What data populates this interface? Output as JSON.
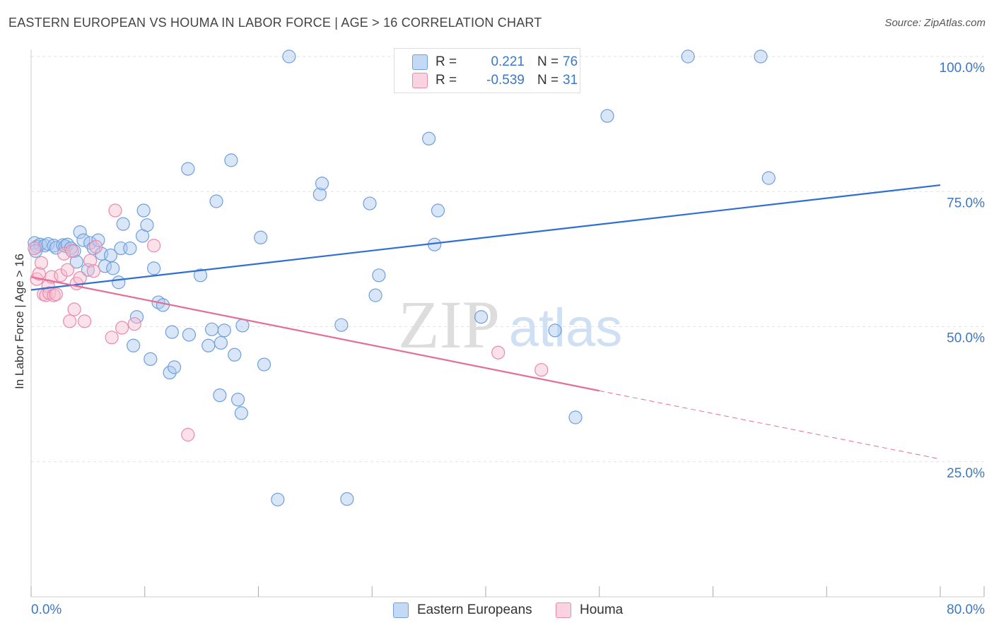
{
  "title": "EASTERN EUROPEAN VS HOUMA IN LABOR FORCE | AGE > 16 CORRELATION CHART",
  "source": "Source: ZipAtlas.com",
  "colors": {
    "blue_fill": "#aac8ef",
    "blue_stroke": "#6f9fdc",
    "blue_line": "#2f6fd1",
    "pink_fill": "#f6bdd0",
    "pink_stroke": "#e88aa9",
    "pink_line": "#e56e97",
    "axis_text": "#3b78c7",
    "grid": "#e2e2e2"
  },
  "legend_top": {
    "rows": [
      {
        "label": "R =",
        "r": "0.221",
        "n_label": "N =",
        "n": "76",
        "series": "blue"
      },
      {
        "label": "R =",
        "r": "-0.539",
        "n_label": "N =",
        "n": "31",
        "series": "pink"
      }
    ]
  },
  "legend_bottom": [
    {
      "label": "Eastern Europeans",
      "series": "blue"
    },
    {
      "label": "Houma",
      "series": "pink"
    }
  ],
  "chart_data": {
    "type": "scatter",
    "title": "EASTERN EUROPEAN VS HOUMA IN LABOR FORCE | AGE > 16 CORRELATION CHART",
    "xlabel": "",
    "ylabel": "In Labor Force | Age > 16",
    "xlim": [
      0,
      80
    ],
    "ylim": [
      0,
      102
    ],
    "x_tick_labels": [
      "0.0%",
      "80.0%"
    ],
    "y_tick_labels": [
      "25.0%",
      "50.0%",
      "75.0%",
      "100.0%"
    ],
    "y_ticks": [
      25,
      50,
      75,
      100
    ],
    "watermark": {
      "part1": "ZIP",
      "part2": "atlas"
    },
    "series": [
      {
        "name": "Eastern Europeans",
        "color": "blue",
        "trend": {
          "x": [
            0,
            80
          ],
          "y": [
            56.8,
            76.2
          ],
          "dashed_from": null
        },
        "points": [
          [
            0.3,
            65.5
          ],
          [
            0.5,
            64.8
          ],
          [
            0.8,
            65.2
          ],
          [
            1.2,
            65.0
          ],
          [
            1.5,
            65.3
          ],
          [
            2.0,
            65.0
          ],
          [
            2.2,
            64.6
          ],
          [
            2.8,
            65.1
          ],
          [
            3.0,
            64.9
          ],
          [
            3.2,
            65.2
          ],
          [
            3.5,
            64.5
          ],
          [
            3.8,
            64.0
          ],
          [
            4.0,
            62.0
          ],
          [
            4.3,
            67.5
          ],
          [
            4.6,
            66.0
          ],
          [
            5.0,
            60.5
          ],
          [
            5.2,
            65.5
          ],
          [
            5.5,
            64.5
          ],
          [
            5.9,
            66.0
          ],
          [
            6.2,
            63.5
          ],
          [
            6.5,
            61.2
          ],
          [
            7.0,
            63.2
          ],
          [
            7.2,
            60.8
          ],
          [
            7.7,
            58.2
          ],
          [
            7.9,
            64.5
          ],
          [
            8.1,
            69.0
          ],
          [
            8.7,
            64.5
          ],
          [
            9.0,
            46.5
          ],
          [
            9.3,
            51.8
          ],
          [
            9.8,
            66.8
          ],
          [
            9.9,
            71.5
          ],
          [
            10.2,
            68.8
          ],
          [
            10.5,
            44.0
          ],
          [
            10.8,
            60.8
          ],
          [
            11.2,
            54.5
          ],
          [
            11.6,
            54.0
          ],
          [
            12.2,
            41.5
          ],
          [
            12.4,
            49.0
          ],
          [
            12.6,
            42.5
          ],
          [
            13.8,
            79.2
          ],
          [
            13.9,
            48.5
          ],
          [
            14.9,
            59.5
          ],
          [
            15.6,
            46.5
          ],
          [
            15.9,
            49.5
          ],
          [
            16.3,
            73.2
          ],
          [
            16.6,
            37.3
          ],
          [
            16.7,
            47.0
          ],
          [
            17.0,
            49.3
          ],
          [
            17.6,
            80.8
          ],
          [
            17.9,
            44.8
          ],
          [
            18.2,
            36.5
          ],
          [
            18.5,
            34.0
          ],
          [
            18.6,
            50.2
          ],
          [
            20.2,
            66.5
          ],
          [
            20.5,
            43.0
          ],
          [
            21.7,
            18.0
          ],
          [
            22.7,
            100.0
          ],
          [
            25.4,
            74.5
          ],
          [
            25.6,
            76.5
          ],
          [
            27.3,
            50.3
          ],
          [
            27.8,
            18.1
          ],
          [
            29.8,
            72.8
          ],
          [
            30.3,
            55.8
          ],
          [
            30.6,
            59.5
          ],
          [
            34.8,
            100.0
          ],
          [
            35.0,
            84.8
          ],
          [
            35.5,
            65.2
          ],
          [
            35.8,
            71.5
          ],
          [
            39.6,
            51.8
          ],
          [
            46.1,
            49.3
          ],
          [
            47.9,
            33.2
          ],
          [
            50.7,
            89.0
          ],
          [
            57.8,
            100.0
          ],
          [
            64.2,
            100.0
          ],
          [
            64.9,
            77.5
          ],
          [
            0.4,
            64.0
          ]
        ]
      },
      {
        "name": "Houma",
        "color": "pink",
        "trend": {
          "x": [
            0,
            80
          ],
          "y": [
            59.2,
            25.5
          ],
          "dashed_from": 50
        },
        "points": [
          [
            0.3,
            64.5
          ],
          [
            0.5,
            58.8
          ],
          [
            0.7,
            59.8
          ],
          [
            0.9,
            61.8
          ],
          [
            1.1,
            56.0
          ],
          [
            1.3,
            55.8
          ],
          [
            1.5,
            57.5
          ],
          [
            1.6,
            56.2
          ],
          [
            1.8,
            59.2
          ],
          [
            2.0,
            55.8
          ],
          [
            2.2,
            56.0
          ],
          [
            2.6,
            59.5
          ],
          [
            2.9,
            63.5
          ],
          [
            3.2,
            60.5
          ],
          [
            3.4,
            51.0
          ],
          [
            3.6,
            64.0
          ],
          [
            3.8,
            53.2
          ],
          [
            4.0,
            58.0
          ],
          [
            4.3,
            59.0
          ],
          [
            4.7,
            51.0
          ],
          [
            5.2,
            62.2
          ],
          [
            5.5,
            60.3
          ],
          [
            5.7,
            64.8
          ],
          [
            7.1,
            48.0
          ],
          [
            7.4,
            71.5
          ],
          [
            8.0,
            49.8
          ],
          [
            9.1,
            50.5
          ],
          [
            10.8,
            65.0
          ],
          [
            13.8,
            30.0
          ],
          [
            41.1,
            45.2
          ],
          [
            44.9,
            42.0
          ]
        ]
      }
    ]
  }
}
